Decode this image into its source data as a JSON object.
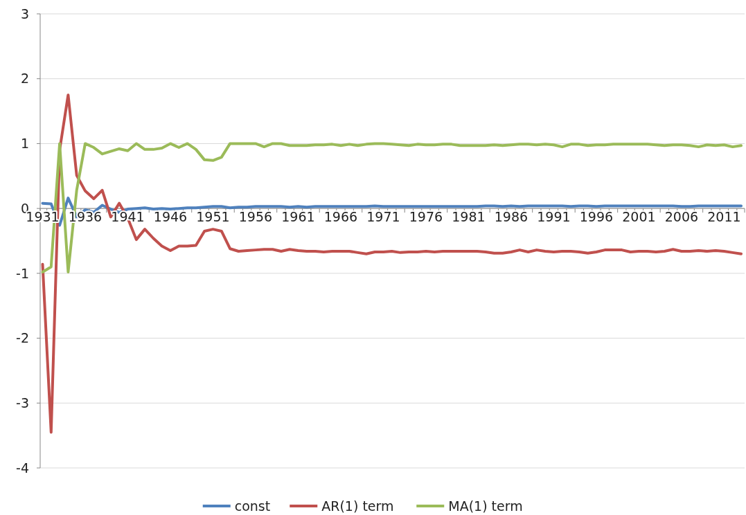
{
  "chart_data": {
    "type": "line",
    "categories": [
      "1931",
      null,
      null,
      null,
      null,
      "1936",
      null,
      null,
      null,
      null,
      "1941",
      null,
      null,
      null,
      null,
      "1946",
      null,
      null,
      null,
      null,
      "1951",
      null,
      null,
      null,
      null,
      "1956",
      null,
      null,
      null,
      null,
      "1961",
      null,
      null,
      null,
      null,
      "1966",
      null,
      null,
      null,
      null,
      "1971",
      null,
      null,
      null,
      null,
      "1976",
      null,
      null,
      null,
      null,
      "1981",
      null,
      null,
      null,
      null,
      "1986",
      null,
      null,
      null,
      null,
      "1991",
      null,
      null,
      null,
      null,
      "1996",
      null,
      null,
      null,
      null,
      "2001",
      null,
      null,
      null,
      null,
      "2006",
      null,
      null,
      null,
      null,
      "2011",
      null,
      null
    ],
    "series": [
      {
        "name": "const",
        "color": "#4f81bd",
        "values": [
          0.08,
          0.07,
          -0.26,
          0.16,
          -0.13,
          -0.02,
          -0.06,
          0.05,
          -0.01,
          -0.06,
          -0.01,
          0,
          0.01,
          -0.01,
          0,
          -0.01,
          0,
          0.01,
          0.01,
          0.02,
          0.03,
          0.03,
          0.01,
          0.02,
          0.02,
          0.03,
          0.03,
          0.03,
          0.03,
          0.02,
          0.03,
          0.02,
          0.03,
          0.03,
          0.03,
          0.03,
          0.03,
          0.03,
          0.03,
          0.04,
          0.03,
          0.03,
          0.03,
          0.03,
          0.03,
          0.03,
          0.03,
          0.03,
          0.03,
          0.03,
          0.03,
          0.03,
          0.04,
          0.04,
          0.03,
          0.04,
          0.03,
          0.04,
          0.04,
          0.04,
          0.04,
          0.04,
          0.03,
          0.04,
          0.04,
          0.03,
          0.04,
          0.04,
          0.04,
          0.04,
          0.04,
          0.04,
          0.04,
          0.04,
          0.04,
          0.03,
          0.03,
          0.04,
          0.04,
          0.04,
          0.04,
          0.04,
          0.04
        ]
      },
      {
        "name": "AR(1) term",
        "color": "#c0504d",
        "values": [
          -0.86,
          -3.45,
          0.9,
          1.75,
          0.51,
          0.27,
          0.15,
          0.28,
          -0.13,
          0.08,
          -0.15,
          -0.48,
          -0.32,
          -0.46,
          -0.58,
          -0.65,
          -0.58,
          -0.58,
          -0.57,
          -0.35,
          -0.32,
          -0.35,
          -0.62,
          -0.66,
          -0.65,
          -0.64,
          -0.63,
          -0.63,
          -0.66,
          -0.63,
          -0.65,
          -0.66,
          -0.66,
          -0.67,
          -0.66,
          -0.66,
          -0.66,
          -0.68,
          -0.7,
          -0.67,
          -0.67,
          -0.66,
          -0.68,
          -0.67,
          -0.67,
          -0.66,
          -0.67,
          -0.66,
          -0.66,
          -0.66,
          -0.66,
          -0.66,
          -0.67,
          -0.69,
          -0.69,
          -0.67,
          -0.64,
          -0.67,
          -0.64,
          -0.66,
          -0.67,
          -0.66,
          -0.66,
          -0.67,
          -0.69,
          -0.67,
          -0.64,
          -0.64,
          -0.64,
          -0.67,
          -0.66,
          -0.66,
          -0.67,
          -0.66,
          -0.63,
          -0.66,
          -0.66,
          -0.65,
          -0.66,
          -0.65,
          -0.66,
          -0.68,
          -0.7
        ]
      },
      {
        "name": "MA(1) term",
        "color": "#9bbb59",
        "values": [
          -0.98,
          -0.9,
          1,
          -0.98,
          0.28,
          1,
          0.94,
          0.84,
          0.88,
          0.92,
          0.89,
          1,
          0.91,
          0.91,
          0.93,
          1,
          0.94,
          1,
          0.91,
          0.75,
          0.74,
          0.79,
          1,
          1,
          1,
          1,
          0.95,
          1,
          1,
          0.97,
          0.97,
          0.97,
          0.98,
          0.98,
          0.99,
          0.97,
          0.99,
          0.97,
          0.99,
          1,
          1,
          0.99,
          0.98,
          0.97,
          0.99,
          0.98,
          0.98,
          0.99,
          0.99,
          0.97,
          0.97,
          0.97,
          0.97,
          0.98,
          0.97,
          0.98,
          0.99,
          0.99,
          0.98,
          0.99,
          0.98,
          0.95,
          0.99,
          0.99,
          0.97,
          0.98,
          0.98,
          0.99,
          0.99,
          0.99,
          0.99,
          0.99,
          0.98,
          0.97,
          0.98,
          0.98,
          0.97,
          0.95,
          0.98,
          0.97,
          0.98,
          0.95,
          0.97
        ]
      }
    ],
    "ylim": [
      -4,
      3
    ],
    "yticks": [
      -4,
      -3,
      -2,
      -1,
      0,
      1,
      2,
      3
    ],
    "grid": "y",
    "legend": "bottom",
    "marker": "none",
    "line_style": "solid"
  }
}
